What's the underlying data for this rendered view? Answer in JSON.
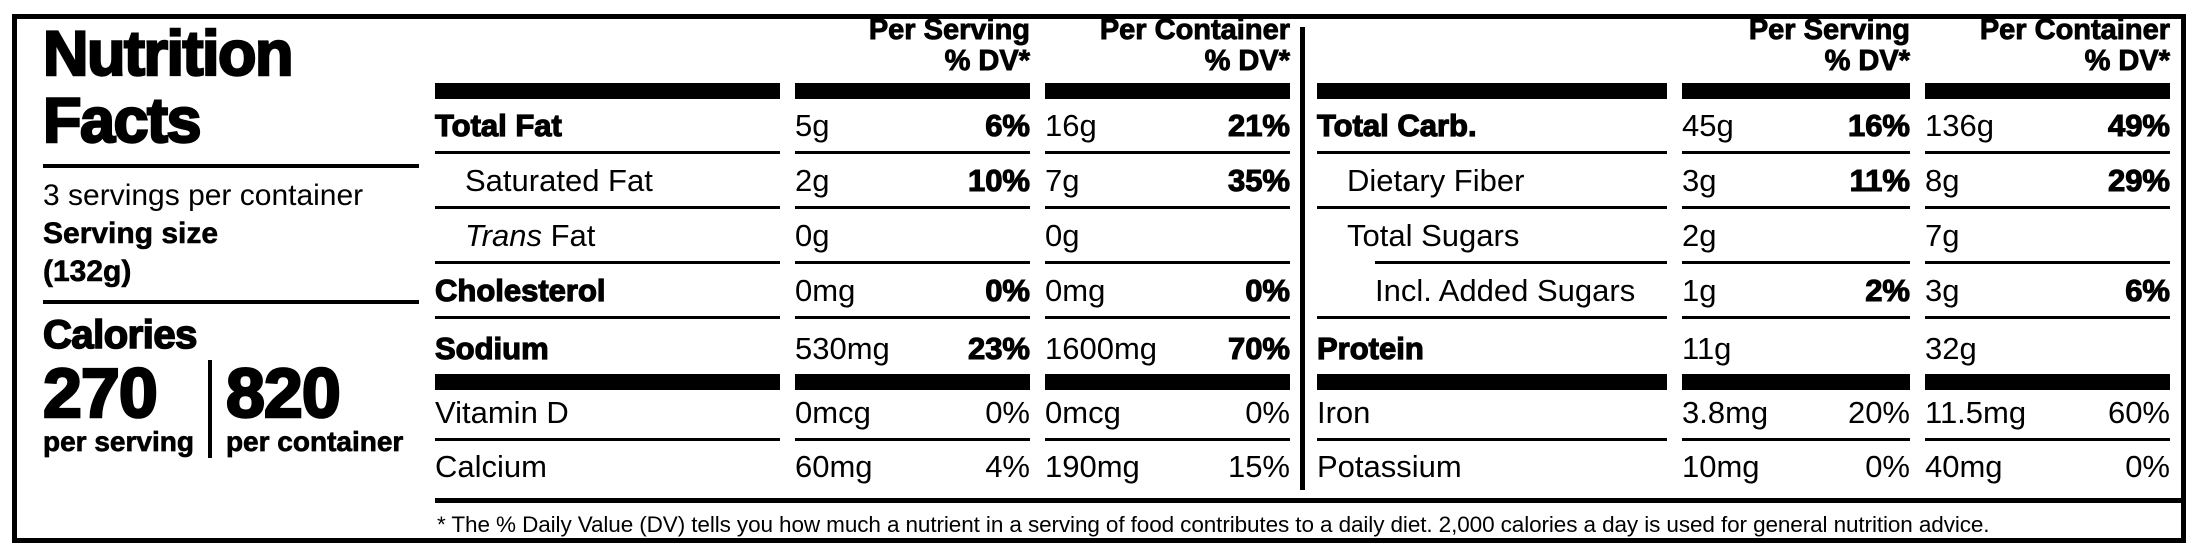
{
  "colors": {
    "ink": "#000000",
    "background": "#ffffff"
  },
  "header": {
    "title_line1": "Nutrition",
    "title_line2": "Facts",
    "servings_per_container": "3 servings per container",
    "serving_size_label": "Serving size",
    "serving_size_value": "(132g)",
    "calories_label": "Calories",
    "calories_per_serving": "270",
    "calories_per_serving_label": "per serving",
    "calories_per_container": "820",
    "calories_per_container_label": "per container"
  },
  "columns": {
    "per_serving_label": "Per Serving",
    "per_container_label": "Per Container",
    "dv_label": "% DV*"
  },
  "left_table": {
    "rows": [
      {
        "name": "Total Fat",
        "serving_amount": "5g",
        "serving_dv": "6%",
        "container_amount": "16g",
        "container_dv": "21%"
      },
      {
        "name": "Saturated Fat",
        "serving_amount": "2g",
        "serving_dv": "10%",
        "container_amount": "7g",
        "container_dv": "35%"
      },
      {
        "name_italic": "Trans",
        "name_rest": " Fat",
        "serving_amount": "0g",
        "serving_dv": "",
        "container_amount": "0g",
        "container_dv": ""
      },
      {
        "name": "Cholesterol",
        "serving_amount": "0mg",
        "serving_dv": "0%",
        "container_amount": "0mg",
        "container_dv": "0%"
      },
      {
        "name": "Sodium",
        "serving_amount": "530mg",
        "serving_dv": "23%",
        "container_amount": "1600mg",
        "container_dv": "70%"
      },
      {
        "name": "Vitamin D",
        "serving_amount": "0mcg",
        "serving_dv": "0%",
        "container_amount": "0mcg",
        "container_dv": "0%"
      },
      {
        "name": "Calcium",
        "serving_amount": "60mg",
        "serving_dv": "4%",
        "container_amount": "190mg",
        "container_dv": "15%"
      }
    ]
  },
  "right_table": {
    "rows": [
      {
        "name": "Total Carb.",
        "serving_amount": "45g",
        "serving_dv": "16%",
        "container_amount": "136g",
        "container_dv": "49%"
      },
      {
        "name": "Dietary Fiber",
        "serving_amount": "3g",
        "serving_dv": "11%",
        "container_amount": "8g",
        "container_dv": "29%"
      },
      {
        "name": "Total Sugars",
        "serving_amount": "2g",
        "serving_dv": "",
        "container_amount": "7g",
        "container_dv": ""
      },
      {
        "name": "Incl. Added Sugars",
        "serving_amount": "1g",
        "serving_dv": "2%",
        "container_amount": "3g",
        "container_dv": "6%"
      },
      {
        "name": "Protein",
        "serving_amount": "11g",
        "serving_dv": "",
        "container_amount": "32g",
        "container_dv": ""
      },
      {
        "name": "Iron",
        "serving_amount": "3.8mg",
        "serving_dv": "20%",
        "container_amount": "11.5mg",
        "container_dv": "60%"
      },
      {
        "name": "Potassium",
        "serving_amount": "10mg",
        "serving_dv": "0%",
        "container_amount": "40mg",
        "container_dv": "0%"
      }
    ]
  },
  "footnote": "* The % Daily Value (DV) tells you how much a nutrient in a serving of food contributes to a daily diet. 2,000 calories a day is used for general nutrition advice."
}
